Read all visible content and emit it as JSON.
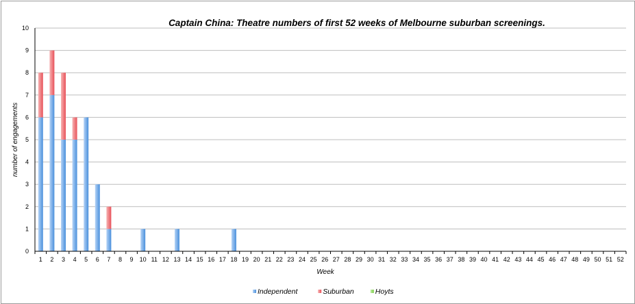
{
  "chart_data": {
    "type": "bar",
    "stacked": true,
    "title": "Captain China: Theatre numbers of first 52 weeks of Melbourne suburban screenings.",
    "xlabel": "Week",
    "ylabel": "number of engagements",
    "ylim": [
      0,
      10
    ],
    "yticks": [
      0,
      1,
      2,
      3,
      4,
      5,
      6,
      7,
      8,
      9,
      10
    ],
    "grid": true,
    "legend_position": "bottom",
    "categories": [
      "1",
      "2",
      "3",
      "4",
      "5",
      "6",
      "7",
      "8",
      "9",
      "10",
      "11",
      "12",
      "13",
      "14",
      "15",
      "16",
      "17",
      "18",
      "19",
      "20",
      "21",
      "22",
      "23",
      "24",
      "25",
      "26",
      "27",
      "28",
      "29",
      "30",
      "31",
      "32",
      "33",
      "34",
      "35",
      "36",
      "37",
      "38",
      "39",
      "40",
      "41",
      "42",
      "43",
      "44",
      "45",
      "46",
      "47",
      "48",
      "49",
      "50",
      "51",
      "52"
    ],
    "series": [
      {
        "name": "Independent",
        "color": "#4a90dc",
        "color_light": "#b5d3f6",
        "values": [
          6,
          7,
          5,
          5,
          6,
          3,
          1,
          0,
          0,
          1,
          0,
          0,
          1,
          0,
          0,
          0,
          0,
          1,
          0,
          0,
          0,
          0,
          0,
          0,
          0,
          0,
          0,
          0,
          0,
          0,
          0,
          0,
          0,
          0,
          0,
          0,
          0,
          0,
          0,
          0,
          0,
          0,
          0,
          0,
          0,
          0,
          0,
          0,
          0,
          0,
          0,
          0
        ]
      },
      {
        "name": "Suburban",
        "color": "#e8525a",
        "color_light": "#f6b3b3",
        "values": [
          2,
          2,
          3,
          1,
          0,
          0,
          1,
          0,
          0,
          0,
          0,
          0,
          0,
          0,
          0,
          0,
          0,
          0,
          0,
          0,
          0,
          0,
          0,
          0,
          0,
          0,
          0,
          0,
          0,
          0,
          0,
          0,
          0,
          0,
          0,
          0,
          0,
          0,
          0,
          0,
          0,
          0,
          0,
          0,
          0,
          0,
          0,
          0,
          0,
          0,
          0,
          0
        ]
      },
      {
        "name": "Hoyts",
        "color": "#7ccf4a",
        "color_light": "#c4ecaa",
        "values": [
          0,
          0,
          0,
          0,
          0,
          0,
          0,
          0,
          0,
          0,
          0,
          0,
          0,
          0,
          0,
          0,
          0,
          0,
          0,
          0,
          0,
          0,
          0,
          0,
          0,
          0,
          0,
          0,
          0,
          0,
          0,
          0,
          0,
          0,
          0,
          0,
          0,
          0,
          0,
          0,
          0,
          0,
          0,
          0,
          0,
          0,
          0,
          0,
          0,
          0,
          0,
          0
        ]
      }
    ]
  }
}
